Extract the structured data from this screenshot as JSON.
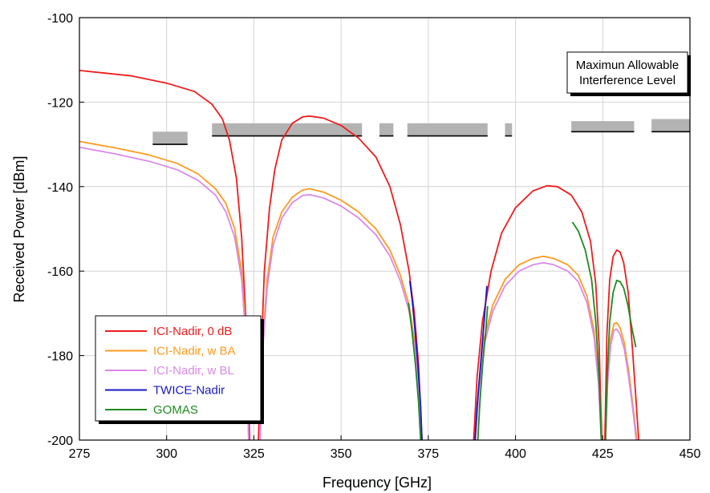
{
  "chart_data": {
    "type": "line",
    "xlabel": "Frequency [GHz]",
    "ylabel": "Received Power [dBm]",
    "xlim": [
      275,
      450
    ],
    "ylim": [
      -200,
      -100
    ],
    "xticks": [
      275,
      300,
      325,
      350,
      375,
      400,
      425,
      450
    ],
    "yticks": [
      -100,
      -120,
      -140,
      -160,
      -180,
      -200
    ],
    "grid": true,
    "legend_position": "bottom-left",
    "annotation": [
      "Maximun Allowable",
      "Interference Level"
    ],
    "series": [
      {
        "name": "ICI-Nadir, 0 dB",
        "color": "#ee1c1c",
        "segments": [
          [
            [
              275,
              -112.5
            ],
            [
              290,
              -113.8
            ],
            [
              300,
              -115.5
            ],
            [
              308,
              -117.5
            ],
            [
              313,
              -120.5
            ],
            [
              316,
              -124
            ],
            [
              318,
              -129
            ],
            [
              320,
              -138
            ],
            [
              321.5,
              -152
            ],
            [
              322.5,
              -168
            ],
            [
              323.3,
              -183
            ],
            [
              323.8,
              -200
            ]
          ],
          [
            [
              326.3,
              -200
            ],
            [
              327,
              -182
            ],
            [
              328,
              -160
            ],
            [
              329.5,
              -145
            ],
            [
              331,
              -136
            ],
            [
              333,
              -129
            ],
            [
              336,
              -125
            ],
            [
              339,
              -123.5
            ],
            [
              341,
              -123.3
            ],
            [
              345,
              -123.8
            ],
            [
              350,
              -125.5
            ],
            [
              355,
              -128.5
            ],
            [
              360,
              -133
            ],
            [
              364,
              -140
            ],
            [
              367,
              -149
            ],
            [
              369.5,
              -160
            ],
            [
              371,
              -170
            ],
            [
              372.2,
              -182
            ],
            [
              373.2,
              -200
            ]
          ],
          [
            [
              388,
              -200
            ],
            [
              389,
              -185
            ],
            [
              390.5,
              -172
            ],
            [
              393,
              -160
            ],
            [
              396,
              -151
            ],
            [
              400,
              -145
            ],
            [
              405,
              -141
            ],
            [
              409,
              -139.8
            ],
            [
              412,
              -140
            ],
            [
              416,
              -142
            ],
            [
              419,
              -146
            ],
            [
              421.5,
              -153
            ],
            [
              423,
              -163
            ],
            [
              424,
              -178
            ],
            [
              424.7,
              -200
            ]
          ],
          [
            [
              425.6,
              -200
            ],
            [
              426.2,
              -175
            ],
            [
              427,
              -162
            ],
            [
              428,
              -156.5
            ],
            [
              429,
              -155
            ],
            [
              430,
              -155.5
            ],
            [
              431,
              -158
            ],
            [
              432.3,
              -165
            ],
            [
              433.5,
              -178
            ],
            [
              434.5,
              -190
            ],
            [
              435.3,
              -200
            ]
          ]
        ]
      },
      {
        "name": "ICI-Nadir, w BA",
        "color": "#ff9a1e",
        "segments": [
          [
            [
              275,
              -129.3
            ],
            [
              285,
              -130.8
            ],
            [
              295,
              -132.5
            ],
            [
              303,
              -134.5
            ],
            [
              309,
              -137
            ],
            [
              314,
              -140.5
            ],
            [
              317,
              -144
            ],
            [
              319.5,
              -150
            ],
            [
              321.5,
              -160
            ],
            [
              322.8,
              -175
            ],
            [
              323.5,
              -200
            ]
          ],
          [
            [
              326.8,
              -200
            ],
            [
              327.6,
              -176
            ],
            [
              328.8,
              -162
            ],
            [
              330.5,
              -152
            ],
            [
              333,
              -146
            ],
            [
              336,
              -142.5
            ],
            [
              339,
              -140.8
            ],
            [
              341,
              -140.5
            ],
            [
              345,
              -141.3
            ],
            [
              350,
              -143.2
            ],
            [
              355,
              -146
            ],
            [
              360,
              -150
            ],
            [
              364,
              -155
            ],
            [
              367,
              -161
            ],
            [
              369.5,
              -168
            ],
            [
              371.2,
              -177
            ],
            [
              372.4,
              -188
            ],
            [
              373.2,
              -200
            ]
          ],
          [
            [
              388.5,
              -200
            ],
            [
              389.5,
              -187
            ],
            [
              391,
              -176
            ],
            [
              393.5,
              -168
            ],
            [
              397,
              -162
            ],
            [
              401,
              -158.5
            ],
            [
              405,
              -157
            ],
            [
              408,
              -156.5
            ],
            [
              411,
              -157
            ],
            [
              415,
              -158.5
            ],
            [
              418,
              -161
            ],
            [
              420.5,
              -166
            ],
            [
              422.5,
              -174
            ],
            [
              423.8,
              -186
            ],
            [
              424.6,
              -200
            ]
          ],
          [
            [
              425.8,
              -200
            ],
            [
              426.4,
              -185
            ],
            [
              427.3,
              -176
            ],
            [
              428.2,
              -172.5
            ],
            [
              429,
              -172.2
            ],
            [
              430,
              -173.5
            ],
            [
              431.2,
              -177
            ],
            [
              432.5,
              -184
            ],
            [
              433.8,
              -193
            ],
            [
              434.8,
              -200
            ]
          ]
        ]
      },
      {
        "name": "ICI-Nadir, w BL",
        "color": "#d98ae8",
        "segments": [
          [
            [
              275,
              -130.7
            ],
            [
              285,
              -132.2
            ],
            [
              295,
              -134
            ],
            [
              303,
              -136
            ],
            [
              309,
              -138.5
            ],
            [
              314,
              -142
            ],
            [
              317,
              -146
            ],
            [
              319.5,
              -152
            ],
            [
              321.5,
              -162
            ],
            [
              322.8,
              -177
            ],
            [
              323.5,
              -200
            ]
          ],
          [
            [
              326.8,
              -200
            ],
            [
              327.6,
              -178
            ],
            [
              328.8,
              -164
            ],
            [
              330.5,
              -154
            ],
            [
              333,
              -147.5
            ],
            [
              336,
              -143.8
            ],
            [
              339,
              -142.1
            ],
            [
              341,
              -141.9
            ],
            [
              345,
              -142.7
            ],
            [
              350,
              -144.6
            ],
            [
              355,
              -147.4
            ],
            [
              360,
              -151.4
            ],
            [
              364,
              -156.4
            ],
            [
              367,
              -162.4
            ],
            [
              369.5,
              -169.4
            ],
            [
              371.2,
              -178.4
            ],
            [
              372.4,
              -189
            ],
            [
              373.2,
              -200
            ]
          ],
          [
            [
              388.5,
              -200
            ],
            [
              389.5,
              -188.5
            ],
            [
              391,
              -177.5
            ],
            [
              393.5,
              -169.5
            ],
            [
              397,
              -163.5
            ],
            [
              401,
              -160
            ],
            [
              405,
              -158.5
            ],
            [
              408,
              -158
            ],
            [
              411,
              -158.5
            ],
            [
              415,
              -160
            ],
            [
              418,
              -162.5
            ],
            [
              420.5,
              -167.5
            ],
            [
              422.5,
              -175.5
            ],
            [
              423.8,
              -187
            ],
            [
              424.6,
              -200
            ]
          ],
          [
            [
              425.8,
              -200
            ],
            [
              426.4,
              -186.5
            ],
            [
              427.3,
              -177.5
            ],
            [
              428.2,
              -174
            ],
            [
              429,
              -173.7
            ],
            [
              430,
              -175
            ],
            [
              431.2,
              -178.5
            ],
            [
              432.5,
              -185.5
            ],
            [
              433.8,
              -194
            ],
            [
              434.6,
              -200
            ]
          ]
        ]
      },
      {
        "name": "TWICE-Nadir",
        "color": "#1818c8",
        "segments": [
          [
            [
              369.7,
              -162.3
            ],
            [
              370.4,
              -167
            ],
            [
              371.2,
              -174
            ],
            [
              372,
              -182
            ],
            [
              372.8,
              -192
            ],
            [
              373.2,
              -200
            ]
          ],
          [
            [
              388.4,
              -200
            ],
            [
              389,
              -192
            ],
            [
              390,
              -182
            ],
            [
              391,
              -172
            ],
            [
              391.8,
              -163.5
            ]
          ]
        ]
      },
      {
        "name": "GOMAS",
        "color": "#1f8a1f",
        "segments": [
          [
            [
              369.3,
              -167.5
            ],
            [
              370.3,
              -174
            ],
            [
              371.3,
              -182
            ],
            [
              372.2,
              -191
            ],
            [
              372.8,
              -200
            ]
          ],
          [
            [
              389.2,
              -200
            ],
            [
              389.8,
              -191
            ],
            [
              390.6,
              -182
            ],
            [
              391.5,
              -174
            ],
            [
              392,
              -168.3
            ]
          ],
          [
            [
              416.3,
              -148.4
            ],
            [
              418,
              -150.5
            ],
            [
              420,
              -155
            ],
            [
              421.8,
              -162
            ],
            [
              423,
              -172
            ],
            [
              424,
              -186
            ],
            [
              424.6,
              -200
            ]
          ],
          [
            [
              425.8,
              -200
            ],
            [
              426.3,
              -185
            ],
            [
              427,
              -172
            ],
            [
              428,
              -165
            ],
            [
              429,
              -162.2
            ],
            [
              430,
              -162.5
            ],
            [
              431,
              -164
            ],
            [
              432.2,
              -168
            ],
            [
              433.5,
              -174
            ],
            [
              434.5,
              -178
            ]
          ]
        ]
      }
    ],
    "interference_levels": {
      "color": "#b3b3b3",
      "line_color": "#000000",
      "bands": [
        {
          "x0": 296,
          "x1": 306,
          "level": -130,
          "top": -127
        },
        {
          "x0": 313,
          "x1": 356,
          "level": -128,
          "top": -125
        },
        {
          "x0": 361,
          "x1": 365,
          "level": -128,
          "top": -125
        },
        {
          "x0": 369,
          "x1": 392,
          "level": -128,
          "top": -125
        },
        {
          "x0": 397,
          "x1": 399,
          "level": -128,
          "top": -125
        },
        {
          "x0": 416,
          "x1": 434,
          "level": -127,
          "top": -124.5
        },
        {
          "x0": 439,
          "x1": 450,
          "level": -127,
          "top": -124
        }
      ]
    }
  }
}
